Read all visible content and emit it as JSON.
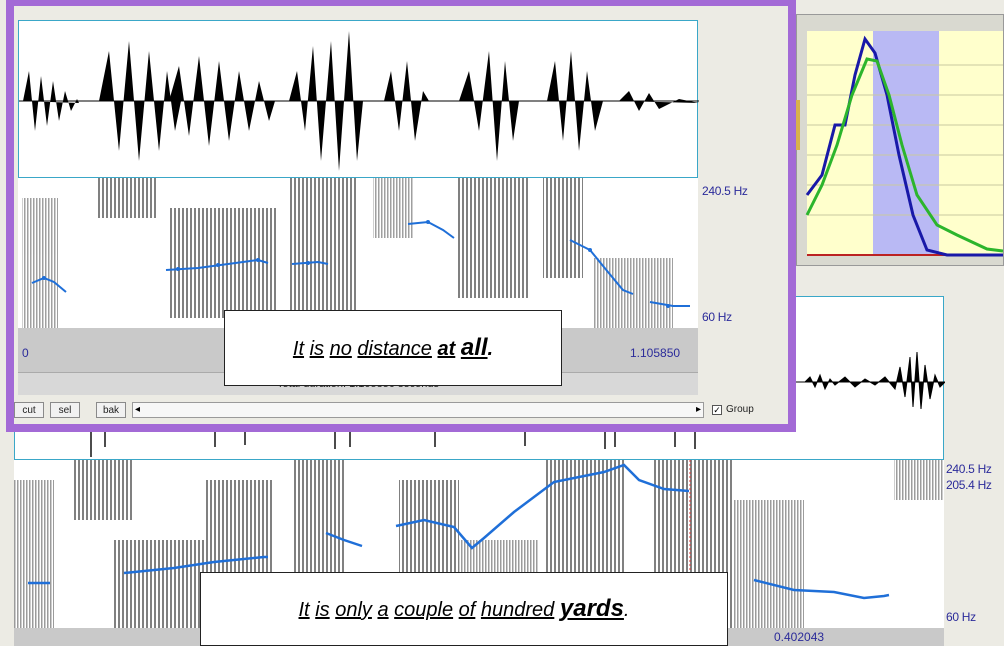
{
  "top_panel": {
    "freq_max": "240.5 Hz",
    "freq_min": "60 Hz",
    "time_start": "0",
    "time_end": "1.105850",
    "total_duration": "Total duration: 1.105850 seconds",
    "caption": {
      "w1": "It",
      "w2": "is",
      "w3": "no",
      "w4": "distance",
      "w5": "at",
      "w6": "all",
      "end": "."
    }
  },
  "toolbar": {
    "cut": "cut",
    "sel": "sel",
    "bak": "bak",
    "scroll_left": "◂",
    "scroll_right": "▸",
    "group_check": "✓",
    "group": "Group"
  },
  "bottom_panel": {
    "freq_max": "240.5 Hz",
    "freq_cursor": "205.4 Hz",
    "freq_min": "60 Hz",
    "cursor_time": "0.402043",
    "caption": {
      "w1": "It",
      "w2": "is",
      "w3": "only",
      "w4": "a",
      "w5": "couple",
      "w6": "of",
      "w7": "hundred",
      "w8": "yards",
      "end": "."
    }
  },
  "colors": {
    "pitch": "#1f6fd8",
    "frame": "#a36ad6",
    "accent": "#3aa7c8"
  }
}
